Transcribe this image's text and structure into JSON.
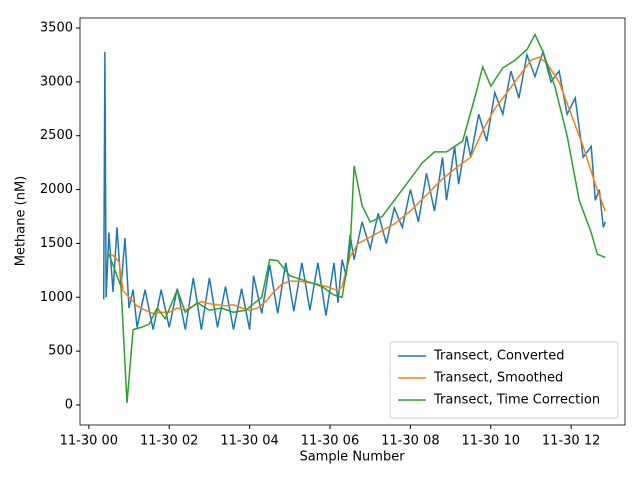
{
  "chart_data": {
    "type": "line",
    "xlabel": "Sample Number",
    "ylabel": "Methane (nM)",
    "xlim": [
      -0.22,
      13.34
    ],
    "ylim": [
      -186,
      3593
    ],
    "xticks": [
      {
        "value": 0,
        "label": "11-30 00"
      },
      {
        "value": 2,
        "label": "11-30 02"
      },
      {
        "value": 4,
        "label": "11-30 04"
      },
      {
        "value": 6,
        "label": "11-30 06"
      },
      {
        "value": 8,
        "label": "11-30 08"
      },
      {
        "value": 10,
        "label": "11-30 10"
      },
      {
        "value": 12,
        "label": "11-30 12"
      }
    ],
    "yticks": [
      0,
      500,
      1000,
      1500,
      2000,
      2500,
      3000,
      3500
    ],
    "legend": "lower right",
    "series": [
      {
        "name": "Transect, Converted",
        "color": "#1f77b4",
        "x": [
          0.37,
          0.4,
          0.43,
          0.5,
          0.6,
          0.7,
          0.8,
          0.9,
          1.0,
          1.1,
          1.2,
          1.4,
          1.6,
          1.8,
          2.0,
          2.2,
          2.4,
          2.6,
          2.8,
          3.0,
          3.2,
          3.4,
          3.6,
          3.8,
          4.0,
          4.1,
          4.3,
          4.5,
          4.7,
          4.9,
          5.1,
          5.3,
          5.5,
          5.7,
          5.9,
          6.1,
          6.2,
          6.3,
          6.4,
          6.5,
          6.6,
          6.8,
          7.0,
          7.2,
          7.4,
          7.6,
          7.8,
          8.0,
          8.2,
          8.4,
          8.6,
          8.8,
          8.9,
          9.1,
          9.2,
          9.4,
          9.5,
          9.7,
          9.9,
          10.1,
          10.3,
          10.5,
          10.7,
          10.9,
          11.1,
          11.3,
          11.5,
          11.7,
          11.9,
          12.1,
          12.3,
          12.5,
          12.6,
          12.7,
          12.8,
          12.85
        ],
        "values": [
          980,
          3280,
          1000,
          1600,
          1050,
          1650,
          1100,
          1550,
          900,
          1070,
          720,
          1070,
          700,
          1070,
          720,
          1080,
          700,
          1180,
          700,
          1180,
          720,
          1100,
          700,
          1080,
          700,
          1200,
          850,
          1300,
          850,
          1320,
          870,
          1320,
          880,
          1320,
          830,
          1320,
          950,
          1350,
          1200,
          1580,
          1350,
          1700,
          1450,
          1780,
          1500,
          1830,
          1650,
          2000,
          1700,
          2150,
          1800,
          2300,
          1900,
          2400,
          2050,
          2500,
          2300,
          2700,
          2450,
          2900,
          2700,
          3100,
          2850,
          3250,
          3050,
          3280,
          3000,
          3100,
          2700,
          2850,
          2300,
          2400,
          1900,
          2000,
          1650,
          1700
        ]
      },
      {
        "name": "Transect, Smoothed",
        "color": "#ff7f0e",
        "x": [
          0.5,
          0.6,
          0.75,
          0.85,
          1.0,
          1.2,
          1.4,
          1.6,
          1.8,
          2.0,
          2.2,
          2.4,
          2.6,
          2.8,
          3.0,
          3.2,
          3.4,
          3.6,
          3.8,
          4.0,
          4.2,
          4.4,
          4.6,
          4.8,
          5.0,
          5.2,
          5.4,
          5.6,
          5.8,
          6.0,
          6.2,
          6.3,
          6.5,
          6.7,
          7.0,
          7.3,
          7.6,
          8.0,
          8.4,
          8.8,
          9.2,
          9.5,
          9.8,
          10.1,
          10.5,
          10.8,
          11.0,
          11.2,
          11.4,
          11.7,
          12.0,
          12.3,
          12.6,
          12.85
        ],
        "values": [
          1400,
          1390,
          1330,
          1060,
          1000,
          920,
          880,
          850,
          860,
          860,
          900,
          880,
          920,
          960,
          940,
          930,
          920,
          930,
          900,
          880,
          900,
          960,
          1050,
          1120,
          1150,
          1150,
          1140,
          1130,
          1110,
          1090,
          1060,
          1100,
          1380,
          1500,
          1560,
          1620,
          1680,
          1800,
          1950,
          2100,
          2220,
          2300,
          2550,
          2750,
          2950,
          3100,
          3200,
          3230,
          3170,
          3000,
          2700,
          2400,
          2050,
          1800
        ]
      },
      {
        "name": "Transect, Time Correction",
        "color": "#2ca02c",
        "x": [
          0.5,
          0.8,
          0.95,
          1.1,
          1.3,
          1.5,
          1.7,
          1.9,
          2.2,
          2.4,
          2.7,
          3.0,
          3.3,
          3.6,
          3.9,
          4.3,
          4.5,
          4.7,
          5.0,
          5.4,
          5.8,
          6.1,
          6.3,
          6.5,
          6.6,
          6.8,
          7.0,
          7.3,
          7.6,
          8.0,
          8.3,
          8.6,
          8.9,
          9.3,
          9.6,
          9.8,
          10.0,
          10.3,
          10.6,
          10.9,
          11.1,
          11.3,
          11.6,
          11.9,
          12.2,
          12.5,
          12.65,
          12.85
        ],
        "values": [
          1400,
          1100,
          20,
          700,
          720,
          750,
          900,
          800,
          1070,
          860,
          950,
          880,
          900,
          860,
          880,
          1000,
          1350,
          1340,
          1200,
          1150,
          1100,
          1020,
          1000,
          1450,
          2220,
          1850,
          1700,
          1750,
          1900,
          2100,
          2250,
          2350,
          2350,
          2450,
          2850,
          3140,
          2960,
          3130,
          3200,
          3300,
          3440,
          3280,
          2950,
          2500,
          1900,
          1600,
          1400,
          1370
        ]
      }
    ]
  }
}
